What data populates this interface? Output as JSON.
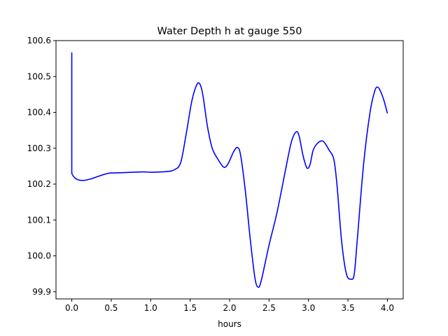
{
  "chart_data": {
    "type": "line",
    "title": "Water Depth h at gauge 550",
    "xlabel": "hours",
    "ylabel": "",
    "xlim": [
      -0.2,
      4.2
    ],
    "ylim": [
      99.88,
      100.6
    ],
    "xticks": [
      0.0,
      0.5,
      1.0,
      1.5,
      2.0,
      2.5,
      3.0,
      3.5,
      4.0
    ],
    "xtick_labels": [
      "0.0",
      "0.5",
      "1.0",
      "1.5",
      "2.0",
      "2.5",
      "3.0",
      "3.5",
      "4.0"
    ],
    "yticks": [
      99.9,
      100.0,
      100.1,
      100.2,
      100.3,
      100.4,
      100.5,
      100.6
    ],
    "ytick_labels": [
      "99.9",
      "100.0",
      "100.1",
      "100.2",
      "100.3",
      "100.4",
      "100.5",
      "100.6"
    ],
    "grid": false,
    "series": [
      {
        "color": "#0000ff",
        "x": [
          0.0,
          0.0,
          0.0,
          0.5,
          0.9,
          1.0,
          1.2,
          1.3,
          1.38,
          1.45,
          1.52,
          1.58,
          1.62,
          1.66,
          1.72,
          1.78,
          1.85,
          1.92,
          1.96,
          2.0,
          2.05,
          2.1,
          2.14,
          2.2,
          2.26,
          2.32,
          2.36,
          2.4,
          2.5,
          2.6,
          2.7,
          2.78,
          2.84,
          2.88,
          2.93,
          2.98,
          3.02,
          3.06,
          3.12,
          3.18,
          3.22,
          3.26,
          3.32,
          3.36,
          3.42,
          3.48,
          3.54,
          3.58,
          3.62,
          3.7,
          3.78,
          3.84,
          3.88,
          3.92,
          3.96,
          4.0
        ],
        "y": [
          100.567,
          100.5,
          100.23,
          100.231,
          100.234,
          100.233,
          100.235,
          100.24,
          100.26,
          100.34,
          100.43,
          100.475,
          100.48,
          100.45,
          100.36,
          100.3,
          100.27,
          100.248,
          100.25,
          100.265,
          100.29,
          100.302,
          100.28,
          100.18,
          100.05,
          99.94,
          99.913,
          99.93,
          100.03,
          100.12,
          100.23,
          100.315,
          100.345,
          100.335,
          100.28,
          100.245,
          100.255,
          100.295,
          100.315,
          100.32,
          100.31,
          100.295,
          100.27,
          100.2,
          100.04,
          99.95,
          99.935,
          99.95,
          100.05,
          100.26,
          100.4,
          100.46,
          100.47,
          100.455,
          100.43,
          100.397
        ]
      }
    ]
  }
}
